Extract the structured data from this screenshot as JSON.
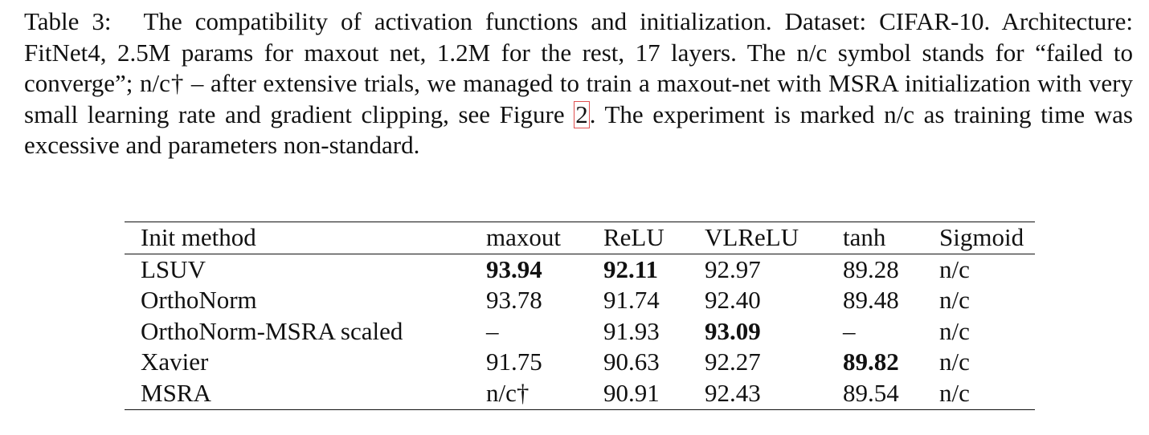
{
  "caption": {
    "label": "Table 3:",
    "text_before_ref": "The compatibility of activation functions and initialization. Dataset: CIFAR-10. Architecture: FitNet4, 2.5M params for maxout net, 1.2M for the rest, 17 layers. The n/c symbol stands for “failed to converge”; n/c† – after extensive trials, we managed to train a maxout-net with MSRA initialization with very small learning rate and gradient clipping, see Figure ",
    "figure_ref": "2",
    "text_after_ref": ". The experiment is marked n/c as training time was excessive and parameters non-standard."
  },
  "table": {
    "headers": [
      "Init method",
      "maxout",
      "ReLU",
      "VLReLU",
      "tanh",
      "Sigmoid"
    ],
    "rows": [
      {
        "cells": [
          "LSUV",
          "93.94",
          "92.11",
          "92.97",
          "89.28",
          "n/c"
        ],
        "bold": [
          false,
          true,
          true,
          false,
          false,
          false
        ]
      },
      {
        "cells": [
          "OrthoNorm",
          "93.78",
          "91.74",
          "92.40",
          "89.48",
          "n/c"
        ],
        "bold": [
          false,
          false,
          false,
          false,
          false,
          false
        ]
      },
      {
        "cells": [
          "OrthoNorm-MSRA scaled",
          "–",
          "91.93",
          "93.09",
          "–",
          "n/c"
        ],
        "bold": [
          false,
          false,
          false,
          true,
          false,
          false
        ]
      },
      {
        "cells": [
          "Xavier",
          "91.75",
          "90.63",
          "92.27",
          "89.82",
          "n/c"
        ],
        "bold": [
          false,
          false,
          false,
          false,
          true,
          false
        ]
      },
      {
        "cells": [
          "MSRA",
          "n/c†",
          "90.91",
          "92.43",
          "89.54",
          "n/c"
        ],
        "bold": [
          false,
          false,
          false,
          false,
          false,
          false
        ]
      }
    ]
  }
}
